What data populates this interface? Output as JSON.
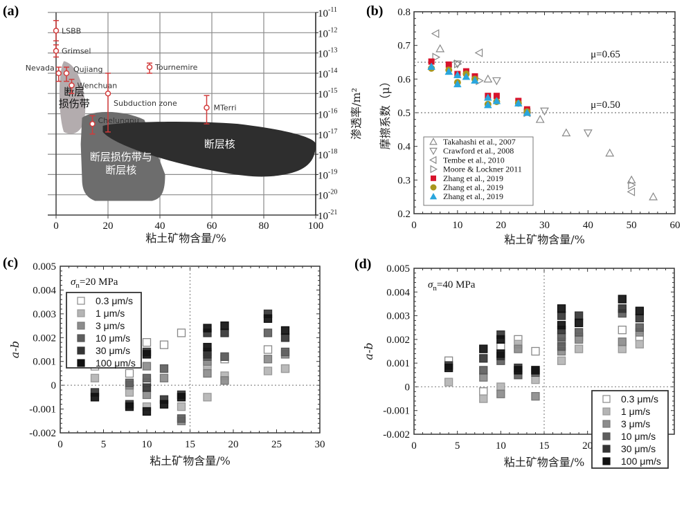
{
  "chart_data": [
    {
      "id": "a",
      "panel_label": "(a)",
      "type": "scatter",
      "xlabel": "粘土矿物含量/%",
      "ylabel": "渗透率/m²",
      "xlim": [
        0,
        100
      ],
      "xticks": [
        "0",
        "20",
        "40",
        "60",
        "80",
        "100"
      ],
      "ylim_log10": [
        -21,
        -11
      ],
      "yticks": [
        {
          "base": "10",
          "exp": "-11"
        },
        {
          "base": "10",
          "exp": "-12"
        },
        {
          "base": "10",
          "exp": "-13"
        },
        {
          "base": "10",
          "exp": "-14"
        },
        {
          "base": "10",
          "exp": "-15"
        },
        {
          "base": "10",
          "exp": "-16"
        },
        {
          "base": "10",
          "exp": "-17"
        },
        {
          "base": "10",
          "exp": "-18"
        },
        {
          "base": "10",
          "exp": "-19"
        },
        {
          "base": "10",
          "exp": "-20"
        },
        {
          "base": "10",
          "exp": "-21"
        }
      ],
      "yaxis_side": "right",
      "grid": true,
      "points": [
        {
          "name": "LSBB",
          "x": 0,
          "logy": -11.9,
          "err": [
            -11.4,
            -12.4
          ]
        },
        {
          "name": "Grimsel",
          "x": 0,
          "logy": -12.9,
          "err": [
            -12.6,
            -13.2
          ]
        },
        {
          "name": "Nevada",
          "x": 1,
          "logy": -14.0,
          "err": [
            -13.7,
            -14.4
          ]
        },
        {
          "name": "Qujiang",
          "x": 4,
          "logy": -14.0,
          "err": [
            -13.7,
            -14.4
          ]
        },
        {
          "name": "Wenchuan",
          "x": 6,
          "logy": -14.6,
          "err": [
            -14.3,
            -15.0
          ]
        },
        {
          "name": "Subduction zone",
          "x": 20,
          "logy": -15.0,
          "err": [
            -14.0,
            -16.9
          ]
        },
        {
          "name": "Chelungpu",
          "x": 14,
          "logy": -16.5,
          "err": [
            -16.1,
            -17.0
          ]
        },
        {
          "name": "Tournemire",
          "x": 36,
          "logy": -13.7,
          "err": [
            -13.5,
            -14.0
          ]
        },
        {
          "name": "MTerri",
          "x": 58,
          "logy": -15.7,
          "err": [
            -15.1,
            -16.5
          ]
        }
      ],
      "regions": [
        {
          "label": "断层损伤带",
          "color": "#b3acae"
        },
        {
          "label": "断层损伤带与断层核",
          "color": "#6d6d6d"
        },
        {
          "label": "断层核",
          "color": "#2e2e2e"
        }
      ],
      "point_color": "#d23b3b"
    },
    {
      "id": "b",
      "panel_label": "(b)",
      "type": "scatter",
      "xlabel": "粘土矿物含量/%",
      "ylabel": "摩擦系数（μ）",
      "xlim": [
        0,
        60
      ],
      "ylim": [
        0.2,
        0.8
      ],
      "xticks": [
        "0",
        "10",
        "20",
        "30",
        "40",
        "50",
        "60"
      ],
      "yticks": [
        "0.2",
        "0.3",
        "0.4",
        "0.5",
        "0.6",
        "0.7",
        "0.8"
      ],
      "reference_lines": [
        {
          "y": 0.65,
          "label": "μ=0.65"
        },
        {
          "y": 0.5,
          "label": "μ=0.50"
        }
      ],
      "legend_position": "bottom-left",
      "series": [
        {
          "name": "Takahashi et al., 2007",
          "marker": "triangle-up-open",
          "color": "#888888",
          "points": [
            [
              6,
              0.69
            ],
            [
              17,
              0.6
            ],
            [
              29,
              0.48
            ],
            [
              35,
              0.44
            ],
            [
              45,
              0.38
            ],
            [
              50,
              0.3
            ],
            [
              55,
              0.25
            ]
          ]
        },
        {
          "name": "Crawford et al., 2008",
          "marker": "triangle-down-open",
          "color": "#888888",
          "points": [
            [
              10,
              0.645
            ],
            [
              19,
              0.595
            ],
            [
              30,
              0.505
            ],
            [
              40,
              0.44
            ]
          ]
        },
        {
          "name": "Tembe et al., 2010",
          "marker": "triangle-left-open",
          "color": "#888888",
          "points": [
            [
              5,
              0.735
            ],
            [
              15,
              0.678
            ],
            [
              26,
              0.5
            ],
            [
              50,
              0.265
            ]
          ]
        },
        {
          "name": "Moore & Lockner 2011",
          "marker": "triangle-right-open",
          "color": "#888888",
          "points": [
            [
              5,
              0.665
            ],
            [
              10,
              0.645
            ],
            [
              15,
              0.595
            ],
            [
              26,
              0.5
            ],
            [
              50,
              0.285
            ]
          ]
        },
        {
          "name": "Zhang et al., 2019",
          "marker": "square",
          "color": "#d7132b",
          "points": [
            [
              4,
              0.652
            ],
            [
              8,
              0.643
            ],
            [
              10,
              0.615
            ],
            [
              12,
              0.623
            ],
            [
              14,
              0.608
            ],
            [
              17,
              0.55
            ],
            [
              19,
              0.55
            ],
            [
              24,
              0.535
            ],
            [
              26,
              0.51
            ]
          ]
        },
        {
          "name": "Zhang et al., 2019",
          "marker": "circle",
          "color": "#a8961e",
          "points": [
            [
              4,
              0.632
            ],
            [
              8,
              0.627
            ],
            [
              10,
              0.59
            ],
            [
              12,
              0.615
            ],
            [
              14,
              0.6
            ],
            [
              17,
              0.525
            ],
            [
              19,
              0.533
            ],
            [
              24,
              0.528
            ],
            [
              26,
              0.503
            ]
          ]
        },
        {
          "name": "Zhang et al., 2019",
          "marker": "triangle-up",
          "color": "#2aa6dd",
          "points": [
            [
              4,
              0.637
            ],
            [
              8,
              0.622
            ],
            [
              10,
              0.612
            ],
            [
              10,
              0.585
            ],
            [
              12,
              0.607
            ],
            [
              14,
              0.596
            ],
            [
              17,
              0.545
            ],
            [
              17,
              0.523
            ],
            [
              19,
              0.535
            ],
            [
              24,
              0.528
            ],
            [
              26,
              0.5
            ]
          ]
        }
      ]
    },
    {
      "id": "c",
      "panel_label": "(c)",
      "type": "scatter",
      "annotation": {
        "sigma": "σ",
        "sub": "n",
        "text": "=20 MPa"
      },
      "xlabel": "粘土矿物含量/%",
      "ylabel": "a-b",
      "xlim": [
        0,
        30
      ],
      "ylim": [
        -0.002,
        0.005
      ],
      "xticks": [
        "0",
        "5",
        "10",
        "15",
        "20",
        "25",
        "30"
      ],
      "yticks": [
        "-0.002",
        "-0.001",
        "0",
        "0.001",
        "0.002",
        "0.003",
        "0.004",
        "0.005"
      ],
      "reference_lines": [
        {
          "y": 0
        },
        {
          "x": 15
        }
      ],
      "legend_position": "top-left",
      "series": [
        {
          "name": "0.3 μm/s",
          "fill": "#ffffff",
          "stroke": "#888888",
          "points": [
            [
              4,
              0.0008
            ],
            [
              8,
              0.0005
            ],
            [
              10,
              0.0018
            ],
            [
              10,
              0.0001
            ],
            [
              12,
              0.0017
            ],
            [
              14,
              0.0022
            ],
            [
              17,
              0.0009
            ],
            [
              19,
              0.0011
            ],
            [
              24,
              0.0015
            ],
            [
              26,
              0.0007
            ]
          ]
        },
        {
          "name": "1 μm/s",
          "fill": "#b4b4b4",
          "stroke": "#999999",
          "points": [
            [
              4,
              0.0003
            ],
            [
              8,
              -0.0003
            ],
            [
              10,
              -0.0009
            ],
            [
              14,
              -0.0009
            ],
            [
              17,
              0.0008
            ],
            [
              17,
              -0.0005
            ],
            [
              19,
              0.0004
            ],
            [
              24,
              0.0006
            ],
            [
              26,
              0.0007
            ]
          ]
        },
        {
          "name": "3 μm/s",
          "fill": "#8c8c8c",
          "stroke": "#777777",
          "points": [
            [
              8,
              0.0
            ],
            [
              10,
              0.0008
            ],
            [
              10,
              -0.0004
            ],
            [
              12,
              0.0003
            ],
            [
              14,
              -0.0015
            ],
            [
              17,
              0.0005
            ],
            [
              17,
              0.001
            ],
            [
              19,
              0.0002
            ],
            [
              19,
              0.0012
            ],
            [
              24,
              0.0011
            ],
            [
              26,
              0.0013
            ]
          ]
        },
        {
          "name": "10 μm/s",
          "fill": "#5e5e5e",
          "stroke": "#555555",
          "points": [
            [
              8,
              0.0001
            ],
            [
              10,
              0.0003
            ],
            [
              12,
              0.0007
            ],
            [
              14,
              -0.0014
            ],
            [
              17,
              0.0012
            ],
            [
              17,
              0.0014
            ],
            [
              19,
              0.0012
            ],
            [
              24,
              0.0022
            ],
            [
              26,
              0.0014
            ]
          ]
        },
        {
          "name": "30 μm/s",
          "fill": "#353535",
          "stroke": "#333333",
          "points": [
            [
              4,
              -0.0003
            ],
            [
              8,
              -0.0008
            ],
            [
              10,
              -0.0001
            ],
            [
              10,
              0.0014
            ],
            [
              12,
              -0.0006
            ],
            [
              14,
              -0.0004
            ],
            [
              17,
              0.0022
            ],
            [
              17,
              0.0013
            ],
            [
              19,
              0.0022
            ],
            [
              24,
              0.003
            ],
            [
              26,
              0.002
            ]
          ]
        },
        {
          "name": "100 μm/s",
          "fill": "#111111",
          "stroke": "#111111",
          "points": [
            [
              4,
              -0.0005
            ],
            [
              8,
              -0.0009
            ],
            [
              10,
              -0.0011
            ],
            [
              10,
              0.0013
            ],
            [
              12,
              -0.0008
            ],
            [
              14,
              -0.0005
            ],
            [
              17,
              0.0024
            ],
            [
              17,
              0.0016
            ],
            [
              19,
              0.0025
            ],
            [
              24,
              0.0028
            ],
            [
              26,
              0.0023
            ]
          ]
        }
      ]
    },
    {
      "id": "d",
      "panel_label": "(d)",
      "type": "scatter",
      "annotation": {
        "sigma": "σ",
        "sub": "n",
        "text": "=40 MPa"
      },
      "xlabel": "粘土矿物含量/%",
      "ylabel": "a-b",
      "xlim": [
        0,
        30
      ],
      "ylim": [
        -0.002,
        0.005
      ],
      "xticks": [
        "0",
        "5",
        "10",
        "15",
        "20",
        "25"
      ],
      "yticks": [
        "-0.002",
        "-0.001",
        "0",
        "0.001",
        "0.002",
        "0.003",
        "0.004",
        "0.005"
      ],
      "reference_lines": [
        {
          "y": 0
        },
        {
          "x": 15
        }
      ],
      "legend_position": "bottom-right",
      "series": [
        {
          "name": "0.3 μm/s",
          "fill": "#ffffff",
          "stroke": "#888888",
          "points": [
            [
              4,
              0.0011
            ],
            [
              8,
              -0.0002
            ],
            [
              10,
              0.0017
            ],
            [
              12,
              0.002
            ],
            [
              14,
              0.0015
            ],
            [
              17,
              0.0022
            ],
            [
              19,
              0.0021
            ],
            [
              24,
              0.0024
            ],
            [
              26,
              0.0021
            ]
          ]
        },
        {
          "name": "1 μm/s",
          "fill": "#b4b4b4",
          "stroke": "#999999",
          "points": [
            [
              4,
              0.0002
            ],
            [
              8,
              -0.0005
            ],
            [
              10,
              0.0
            ],
            [
              12,
              0.0018
            ],
            [
              14,
              0.0003
            ],
            [
              17,
              0.0011
            ],
            [
              19,
              0.0016
            ],
            [
              24,
              0.0016
            ],
            [
              26,
              0.0018
            ]
          ]
        },
        {
          "name": "3 μm/s",
          "fill": "#8c8c8c",
          "stroke": "#777777",
          "points": [
            [
              8,
              0.0004
            ],
            [
              10,
              -0.0003
            ],
            [
              12,
              0.0016
            ],
            [
              14,
              -0.0004
            ],
            [
              17,
              0.0019
            ],
            [
              17,
              0.0015
            ],
            [
              19,
              0.002
            ],
            [
              24,
              0.0019
            ],
            [
              26,
              0.0023
            ]
          ]
        },
        {
          "name": "10 μm/s",
          "fill": "#5e5e5e",
          "stroke": "#555555",
          "points": [
            [
              8,
              0.0007
            ],
            [
              10,
              0.0011
            ],
            [
              12,
              0.0005
            ],
            [
              14,
              0.0006
            ],
            [
              17,
              0.0021
            ],
            [
              17,
              0.0017
            ],
            [
              19,
              0.0023
            ],
            [
              24,
              0.0031
            ],
            [
              26,
              0.0025
            ]
          ]
        },
        {
          "name": "30 μm/s",
          "fill": "#353535",
          "stroke": "#333333",
          "points": [
            [
              4,
              0.0009
            ],
            [
              8,
              0.0012
            ],
            [
              10,
              0.0013
            ],
            [
              10,
              0.0022
            ],
            [
              12,
              0.0008
            ],
            [
              14,
              0.0007
            ],
            [
              17,
              0.003
            ],
            [
              17,
              0.0024
            ],
            [
              19,
              0.003
            ],
            [
              24,
              0.0033
            ],
            [
              26,
              0.0029
            ]
          ]
        },
        {
          "name": "100 μm/s",
          "fill": "#111111",
          "stroke": "#111111",
          "points": [
            [
              4,
              0.0008
            ],
            [
              8,
              0.0016
            ],
            [
              10,
              0.0014
            ],
            [
              10,
              0.002
            ],
            [
              12,
              0.0007
            ],
            [
              14,
              0.0007
            ],
            [
              17,
              0.0033
            ],
            [
              17,
              0.0026
            ],
            [
              19,
              0.0027
            ],
            [
              24,
              0.0037
            ],
            [
              26,
              0.0032
            ]
          ]
        }
      ]
    }
  ]
}
